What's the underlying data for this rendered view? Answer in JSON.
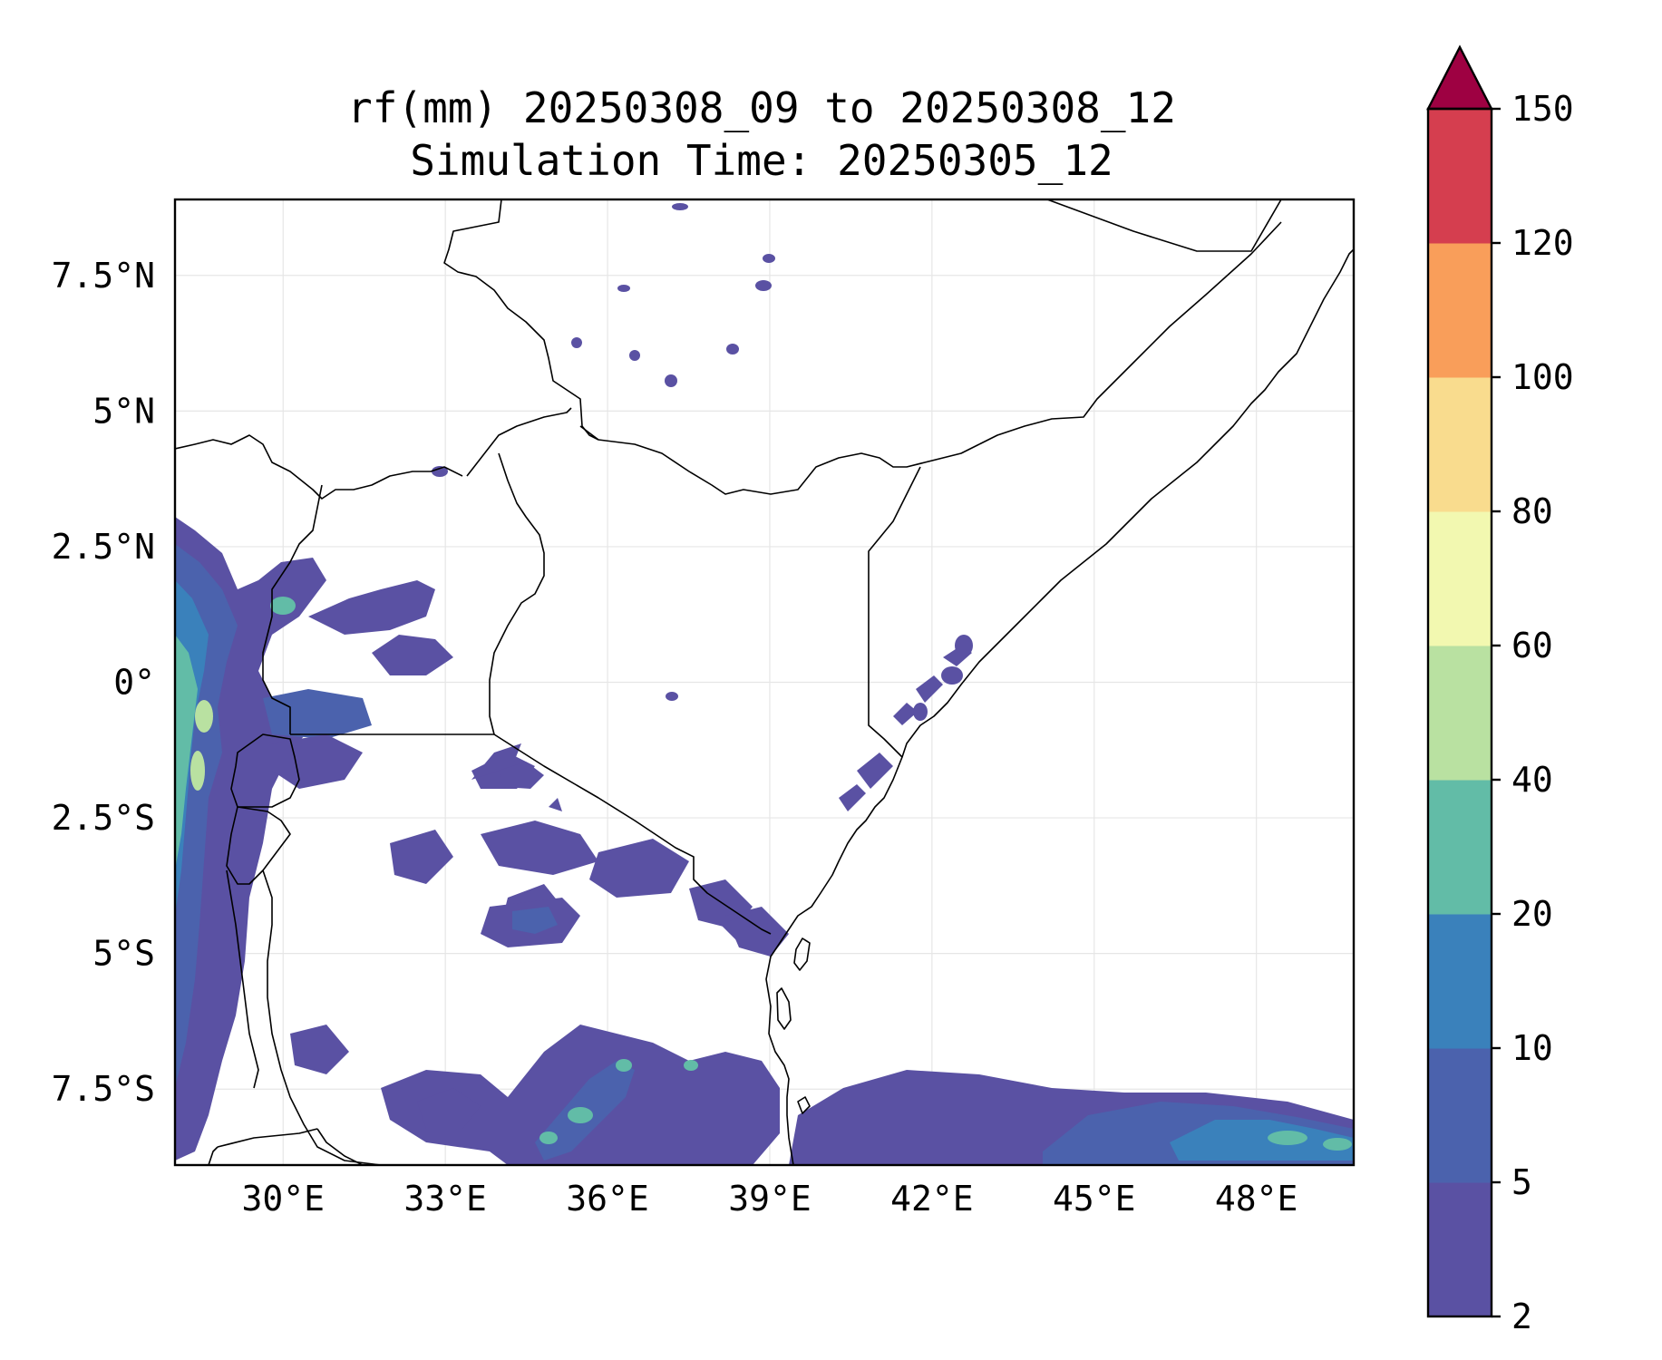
{
  "title": {
    "line1": "rf(mm) 20250308_09 to 20250308_12",
    "line2": "Simulation Time: 20250305_12"
  },
  "map": {
    "x_ticks": [
      "30°E",
      "33°E",
      "36°E",
      "39°E",
      "42°E",
      "45°E",
      "48°E"
    ],
    "y_ticks": [
      "7.5°N",
      "5°N",
      "2.5°N",
      "0°",
      "2.5°S",
      "5°S",
      "7.5°S"
    ],
    "lon_values": [
      30,
      33,
      36,
      39,
      42,
      45,
      48
    ],
    "lat_values": [
      7.5,
      5,
      2.5,
      0,
      -2.5,
      -5,
      -7.5
    ],
    "lon_range": [
      28,
      49.8
    ],
    "lat_range": [
      -8.9,
      8.9
    ],
    "grid": true
  },
  "colorbar": {
    "levels": [
      "2",
      "5",
      "10",
      "20",
      "40",
      "60",
      "80",
      "100",
      "120",
      "150"
    ],
    "colors": [
      "#5a51a3",
      "#4b62ad",
      "#3a81bb",
      "#62bca7",
      "#b9e1a1",
      "#f2f8b0",
      "#f9dc8e",
      "#f99e5a",
      "#d53e4f"
    ],
    "extend_color": "#9e0142",
    "extend": "max"
  }
}
